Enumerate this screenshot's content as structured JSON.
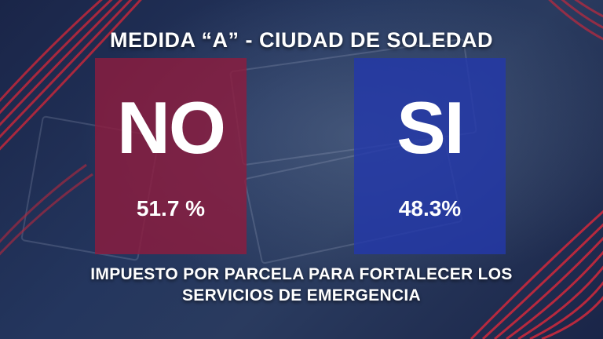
{
  "header": {
    "title": "MEDIDA “A” - CIUDAD DE SOLEDAD"
  },
  "results": {
    "no": {
      "label": "NO",
      "percent": "51.7 %",
      "color": "#8c1c3e"
    },
    "si": {
      "label": "SI",
      "percent": "48.3%",
      "color": "#2338aa"
    }
  },
  "footer": {
    "line1": "IMPUESTO POR PARCELA PARA FORTALECER LOS",
    "line2": "SERVICIOS DE EMERGENCIA"
  }
}
